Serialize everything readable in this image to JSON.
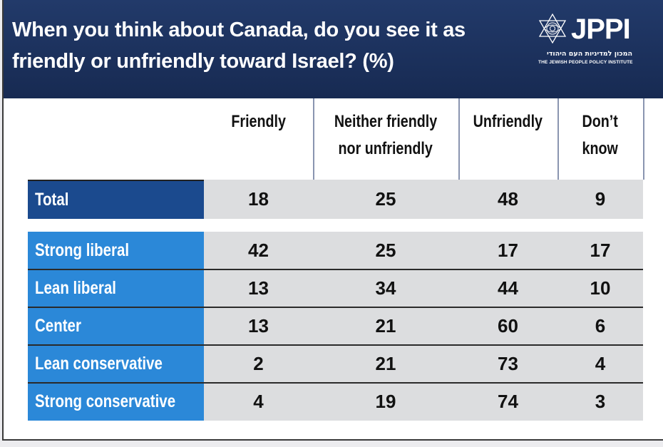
{
  "header": {
    "title_line1": "When you think about Canada, do you see it as",
    "title_line2": "friendly or unfriendly toward Israel? (%)",
    "logo": {
      "icon": "star-of-david-icon",
      "name": "JPPI",
      "hebrew": "המכון למדיניות העם היהודי",
      "english": "THE JEWISH PEOPLE POLICY INSTITUTE"
    }
  },
  "colors": {
    "header_bg": "#1b2f5c",
    "total_label_bg": "#1b4a8e",
    "group_label_bg": "#2b88d8",
    "cell_bg": "#dcdddf"
  },
  "chart_data": {
    "type": "table",
    "title": "When you think about Canada, do you see it as friendly or unfriendly toward Israel? (%)",
    "columns": [
      "Friendly",
      "Neither friendly nor unfriendly",
      "Unfriendly",
      "Don’t know"
    ],
    "column_lines": [
      [
        "Friendly"
      ],
      [
        "Neither friendly",
        "nor unfriendly"
      ],
      [
        "Unfriendly"
      ],
      [
        "Don’t",
        "know"
      ]
    ],
    "total": {
      "label": "Total",
      "values": [
        18,
        25,
        48,
        9
      ]
    },
    "rows": [
      {
        "label": "Strong liberal",
        "values": [
          42,
          25,
          17,
          17
        ]
      },
      {
        "label": "Lean liberal",
        "values": [
          13,
          34,
          44,
          10
        ]
      },
      {
        "label": "Center",
        "values": [
          13,
          21,
          60,
          6
        ]
      },
      {
        "label": "Lean conservative",
        "values": [
          2,
          21,
          73,
          4
        ]
      },
      {
        "label": "Strong conservative",
        "values": [
          4,
          19,
          74,
          3
        ]
      }
    ]
  }
}
